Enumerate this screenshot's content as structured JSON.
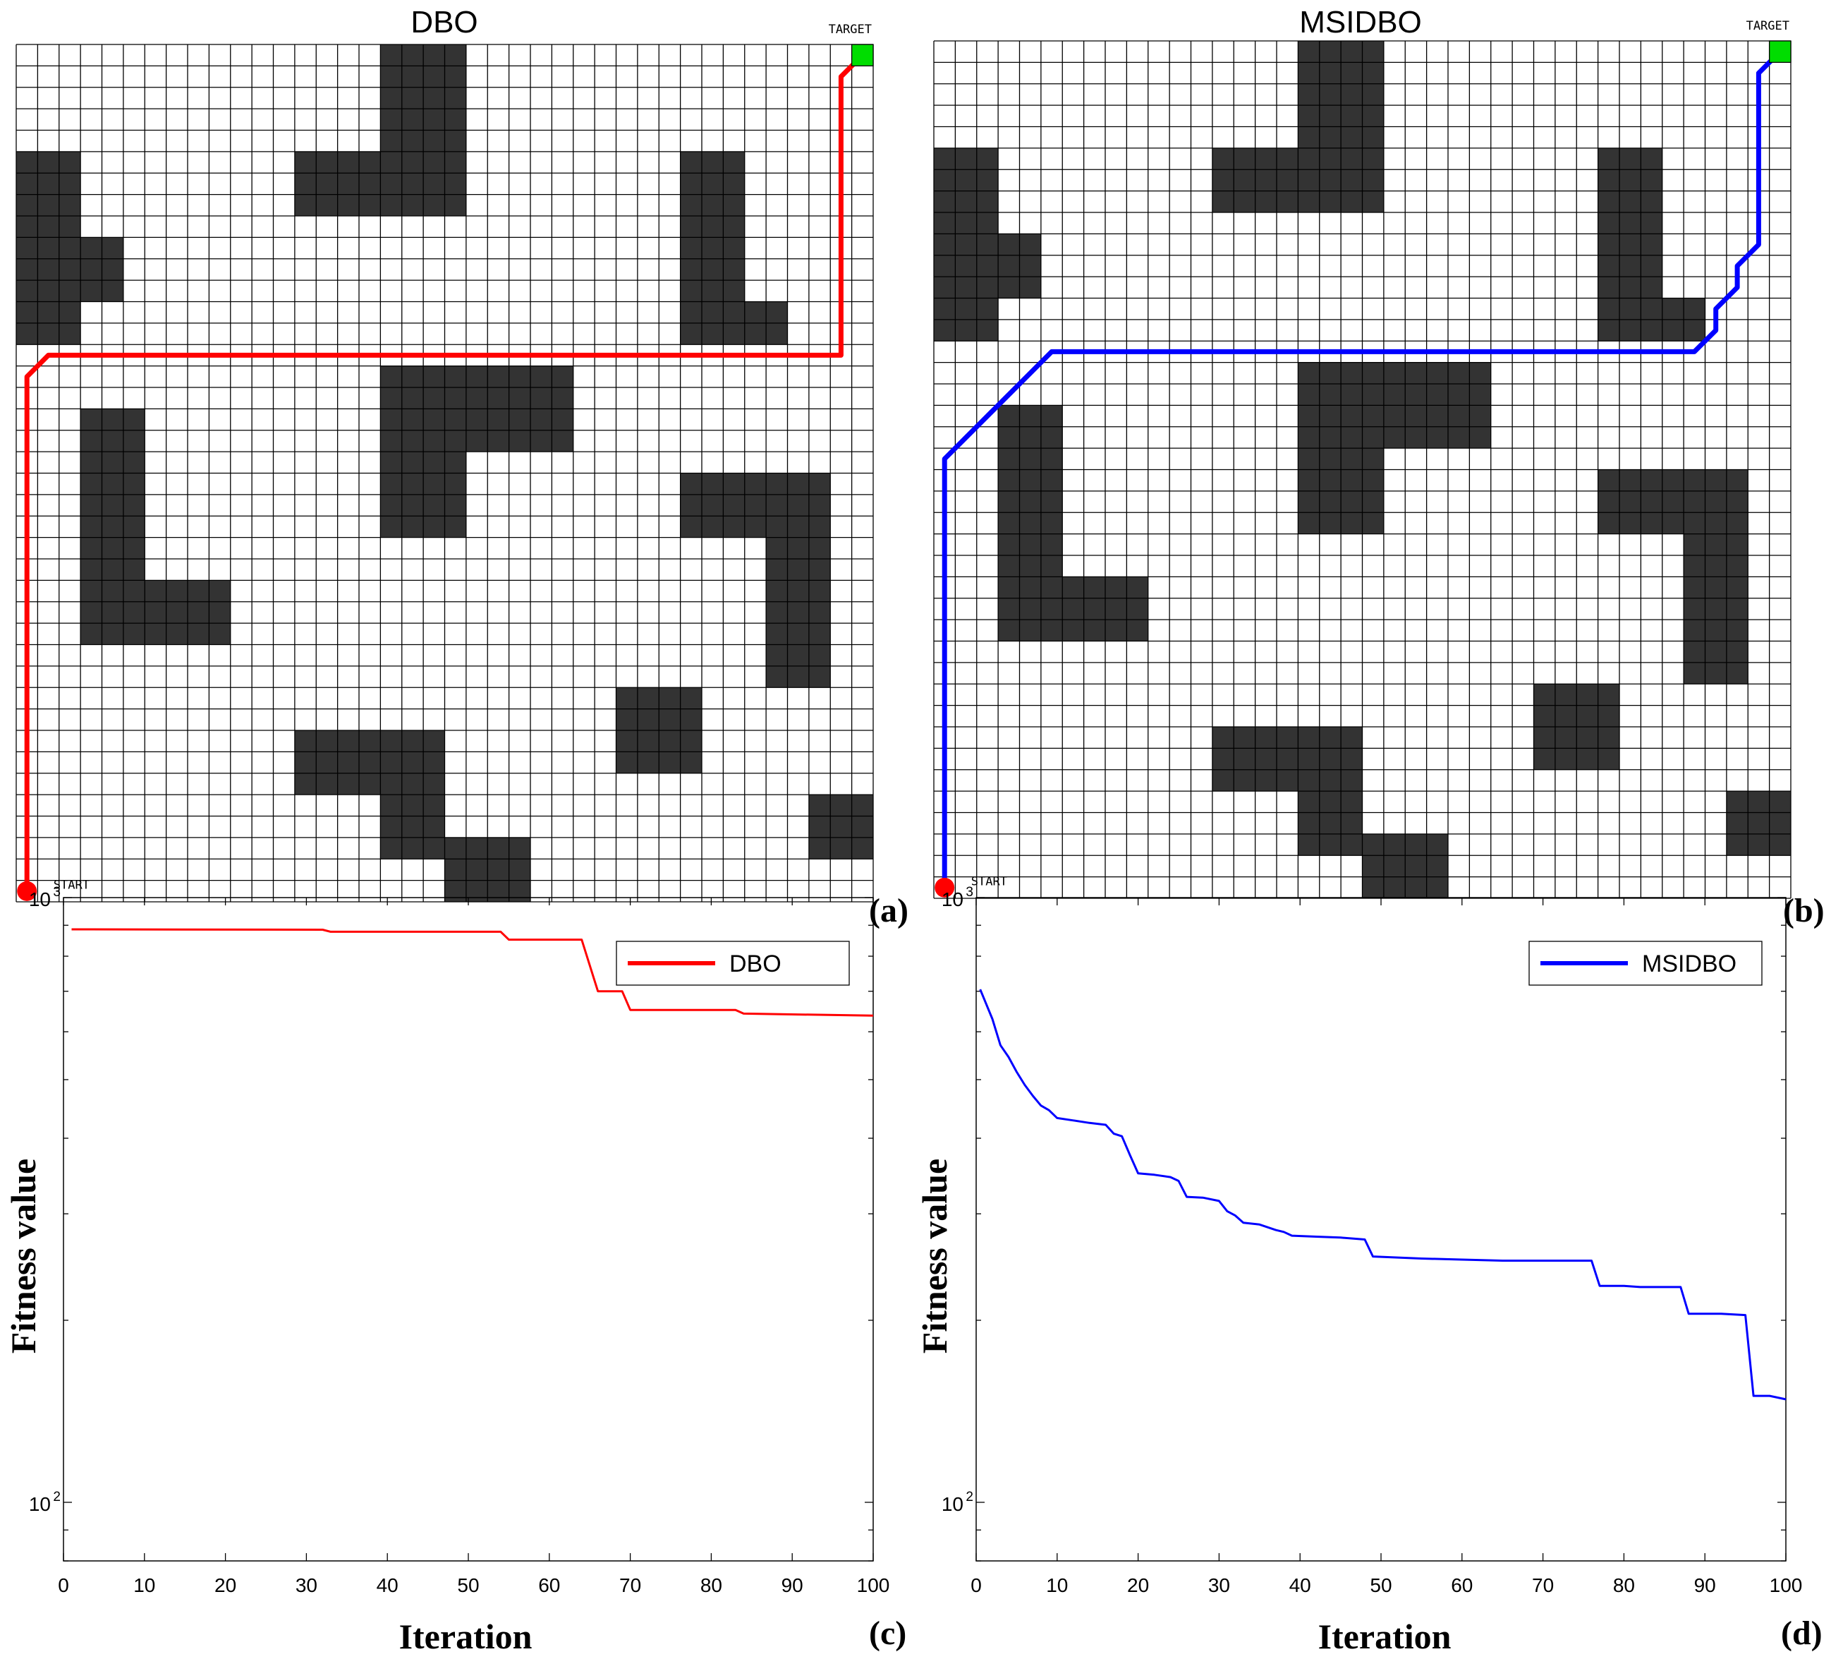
{
  "colors": {
    "dbo": "#ff0000",
    "msidbo": "#0000ff",
    "obstacle": "#333333",
    "target": "#00dd00",
    "start": "#ff0000"
  },
  "panel_tags": {
    "a": "(a)",
    "b": "(b)",
    "c": "(c)",
    "d": "(d)"
  },
  "grid_maps": [
    {
      "id": "a",
      "title": "DBO",
      "target_label": "TARGET",
      "start_label": "START",
      "grid_size": 40,
      "obstacles": [
        [
          17,
          0,
          4,
          6
        ],
        [
          13,
          5,
          8,
          3
        ],
        [
          0,
          5,
          3,
          9
        ],
        [
          3,
          9,
          2,
          3
        ],
        [
          31,
          5,
          3,
          9
        ],
        [
          34,
          12,
          2,
          2
        ],
        [
          17,
          15,
          9,
          4
        ],
        [
          17,
          19,
          4,
          4
        ],
        [
          3,
          17,
          3,
          11
        ],
        [
          6,
          25,
          4,
          3
        ],
        [
          31,
          20,
          7,
          3
        ],
        [
          35,
          23,
          3,
          7
        ],
        [
          28,
          30,
          4,
          4
        ],
        [
          13,
          32,
          7,
          3
        ],
        [
          17,
          35,
          3,
          3
        ],
        [
          20,
          37,
          4,
          3
        ],
        [
          37,
          35,
          3,
          3
        ]
      ],
      "path_color": "dbo",
      "path_cells": [
        [
          0.5,
          39.5
        ],
        [
          0.5,
          15.5
        ],
        [
          1.5,
          14.5
        ],
        [
          38.5,
          14.5
        ],
        [
          38.5,
          1.5
        ],
        [
          39.5,
          0.5
        ]
      ]
    },
    {
      "id": "b",
      "title": "MSIDBO",
      "target_label": "TARGET",
      "start_label": "START",
      "grid_size": 40,
      "obstacles": [
        [
          17,
          0,
          4,
          6
        ],
        [
          13,
          5,
          8,
          3
        ],
        [
          0,
          5,
          3,
          9
        ],
        [
          3,
          9,
          2,
          3
        ],
        [
          31,
          5,
          3,
          9
        ],
        [
          34,
          12,
          2,
          2
        ],
        [
          17,
          15,
          9,
          4
        ],
        [
          17,
          19,
          4,
          4
        ],
        [
          3,
          17,
          3,
          11
        ],
        [
          6,
          25,
          4,
          3
        ],
        [
          31,
          20,
          7,
          3
        ],
        [
          35,
          23,
          3,
          7
        ],
        [
          28,
          30,
          4,
          4
        ],
        [
          13,
          32,
          7,
          3
        ],
        [
          17,
          35,
          3,
          3
        ],
        [
          20,
          37,
          4,
          3
        ],
        [
          37,
          35,
          3,
          3
        ]
      ],
      "path_color": "msidbo",
      "path_cells": [
        [
          0.5,
          39.5
        ],
        [
          0.5,
          19.5
        ],
        [
          5.5,
          14.5
        ],
        [
          35.5,
          14.5
        ],
        [
          36.5,
          13.5
        ],
        [
          36.5,
          12.5
        ],
        [
          37.5,
          11.5
        ],
        [
          37.5,
          10.5
        ],
        [
          38.5,
          9.5
        ],
        [
          38.5,
          1.5
        ],
        [
          39.5,
          0.5
        ]
      ]
    }
  ],
  "chart_data": [
    {
      "id": "c",
      "type": "line",
      "title": "",
      "xlabel": "Iteration",
      "ylabel": "Fitness value",
      "yscale": "log",
      "xlim": [
        0,
        100
      ],
      "ylim": [
        80,
        1000
      ],
      "xticks": [
        "0",
        "10",
        "20",
        "30",
        "40",
        "50",
        "60",
        "70",
        "80",
        "90",
        "100"
      ],
      "yticks": [
        {
          "base": "10",
          "exp": "2",
          "value": 100
        },
        {
          "base": "10",
          "exp": "3",
          "value": 1000
        }
      ],
      "legend": "top-right",
      "series": [
        {
          "name": "DBO",
          "color": "dbo",
          "x": [
            1,
            32,
            33,
            54,
            55,
            64,
            66,
            69,
            70,
            83,
            84,
            100
          ],
          "y": [
            886,
            885,
            878,
            878,
            852,
            852,
            700,
            700,
            652,
            652,
            643,
            638
          ]
        }
      ]
    },
    {
      "id": "d",
      "type": "line",
      "title": "",
      "xlabel": "Iteration",
      "ylabel": "Fitness value",
      "yscale": "log",
      "xlim": [
        0,
        100
      ],
      "ylim": [
        80,
        1000
      ],
      "xticks": [
        "0",
        "10",
        "20",
        "30",
        "40",
        "50",
        "60",
        "70",
        "80",
        "90",
        "100"
      ],
      "yticks": [
        {
          "base": "10",
          "exp": "2",
          "value": 100
        },
        {
          "base": "10",
          "exp": "3",
          "value": 1000
        }
      ],
      "legend": "top-right",
      "series": [
        {
          "name": "MSIDBO",
          "color": "msidbo",
          "x": [
            0.5,
            2,
            3,
            4,
            5,
            6,
            7,
            8,
            9,
            10,
            12,
            14,
            16,
            17,
            18,
            19,
            20,
            22,
            24,
            25,
            26,
            28,
            30,
            31,
            32,
            33,
            35,
            37,
            38,
            39,
            42,
            45,
            48,
            49,
            55,
            60,
            65,
            70,
            76,
            77,
            80,
            82,
            87,
            88,
            90,
            92,
            95,
            96,
            98,
            100
          ],
          "y": [
            705,
            630,
            570,
            545,
            515,
            490,
            470,
            453,
            445,
            432,
            428,
            424,
            421,
            407,
            403,
            375,
            350,
            348,
            345,
            340,
            320,
            319,
            315,
            303,
            298,
            290,
            288,
            282,
            280,
            276,
            275,
            274,
            272,
            255,
            253,
            252,
            251,
            251,
            251,
            228,
            228,
            227,
            227,
            205,
            205,
            205,
            204,
            150,
            150,
            148
          ]
        }
      ]
    }
  ]
}
